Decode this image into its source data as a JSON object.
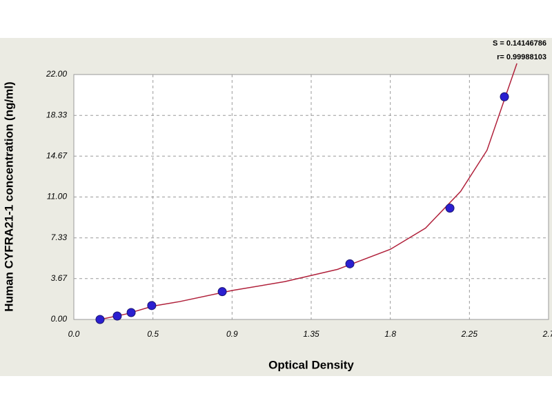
{
  "chart_data": {
    "type": "scatter",
    "xlabel": "Optical Density",
    "ylabel": "Human CYFRA21-1 concentration (ng/ml)",
    "annotations": [
      "S = 0.14146786",
      "r= 0.99988103"
    ],
    "x": [
      0.149,
      0.247,
      0.326,
      0.443,
      0.844,
      1.57,
      2.139,
      2.449
    ],
    "values": [
      0,
      0.31,
      0.62,
      1.25,
      2.5,
      5,
      10,
      20
    ],
    "color": "#2b1fd0",
    "curve": {
      "color": "#b0203a",
      "x": [
        0.149,
        0.3,
        0.45,
        0.6,
        0.9,
        1.2,
        1.5,
        1.8,
        2.0,
        2.2,
        2.35,
        2.45,
        2.52
      ],
      "y": [
        0,
        0.5,
        1.2,
        1.6,
        2.6,
        3.4,
        4.5,
        6.3,
        8.2,
        11.5,
        15.2,
        19.8,
        23.0
      ]
    },
    "xlim": [
      0,
      2.7
    ],
    "xticks": [
      {
        "value": 0,
        "label": "0.0"
      },
      {
        "value": 0.45,
        "label": "0.5"
      },
      0.9,
      1.35,
      1.8,
      2.25,
      2.7
    ],
    "ylim": [
      0,
      22
    ],
    "yticks": [
      {
        "value": 0,
        "label": "0.00"
      },
      3.67,
      7.33,
      {
        "value": 11,
        "label": "11.00"
      },
      14.67,
      18.33,
      {
        "value": 22,
        "label": "22.00"
      }
    ],
    "grid": true
  }
}
